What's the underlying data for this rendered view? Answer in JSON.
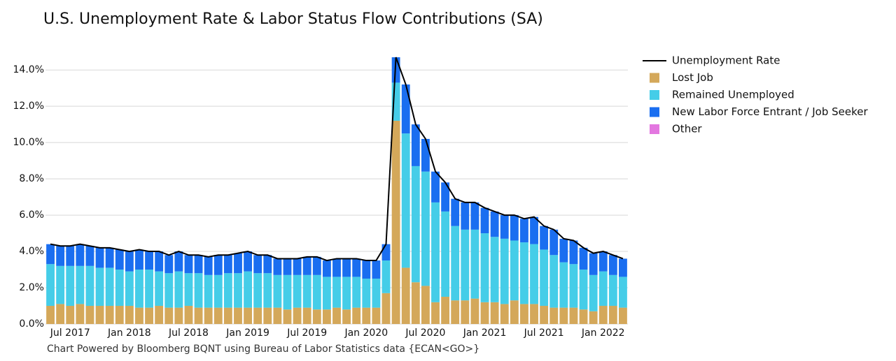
{
  "chart_data": {
    "type": "bar",
    "stacked": true,
    "title": "U.S. Unemployment Rate & Labor Status Flow Contributions (SA)",
    "note": "Chart Powered by Bloomberg BQNT using Bureau of Labor Statistics data    {ECAN<GO>}",
    "categories": [
      null,
      null,
      "Jul 2017",
      null,
      null,
      null,
      null,
      null,
      "Jan 2018",
      null,
      null,
      null,
      null,
      null,
      "Jul 2018",
      null,
      null,
      null,
      null,
      null,
      "Jan 2019",
      null,
      null,
      null,
      null,
      null,
      "Jul 2019",
      null,
      null,
      null,
      null,
      null,
      "Jan 2020",
      null,
      null,
      null,
      null,
      null,
      "Jul 2020",
      null,
      null,
      null,
      null,
      null,
      "Jan 2021",
      null,
      null,
      null,
      null,
      null,
      "Jul 2021",
      null,
      null,
      null,
      null,
      null,
      "Jan 2022",
      null,
      null
    ],
    "series": [
      {
        "name": "Unemployment Rate",
        "type": "line",
        "color": "#000000",
        "values": [
          4.4,
          4.3,
          4.3,
          4.4,
          4.3,
          4.2,
          4.2,
          4.1,
          4.0,
          4.1,
          4.0,
          4.0,
          3.8,
          4.0,
          3.8,
          3.8,
          3.7,
          3.8,
          3.8,
          3.9,
          4.0,
          3.8,
          3.8,
          3.6,
          3.6,
          3.6,
          3.7,
          3.7,
          3.5,
          3.6,
          3.6,
          3.6,
          3.5,
          3.5,
          4.4,
          14.7,
          13.2,
          11.0,
          10.2,
          8.4,
          7.8,
          6.9,
          6.7,
          6.7,
          6.4,
          6.2,
          6.0,
          6.0,
          5.8,
          5.9,
          5.4,
          5.2,
          4.7,
          4.6,
          4.2,
          3.9,
          4.0,
          3.8,
          3.6
        ]
      },
      {
        "name": "Lost Job",
        "type": "bar",
        "color": "#d4a85a",
        "values": [
          1.0,
          1.1,
          1.0,
          1.1,
          1.0,
          1.0,
          1.0,
          1.0,
          1.0,
          0.9,
          0.9,
          1.0,
          0.9,
          0.9,
          1.0,
          0.9,
          0.9,
          0.9,
          0.9,
          0.9,
          0.9,
          0.9,
          0.9,
          0.9,
          0.8,
          0.9,
          0.9,
          0.8,
          0.8,
          0.9,
          0.8,
          0.9,
          0.9,
          0.9,
          1.7,
          11.2,
          3.1,
          2.3,
          2.1,
          1.2,
          1.5,
          1.3,
          1.3,
          1.4,
          1.2,
          1.2,
          1.1,
          1.3,
          1.1,
          1.1,
          1.0,
          0.9,
          0.9,
          0.9,
          0.8,
          0.7,
          1.0,
          1.0,
          0.9
        ]
      },
      {
        "name": "Remained Unemployed",
        "type": "bar",
        "color": "#45cde8",
        "values": [
          2.3,
          2.1,
          2.2,
          2.1,
          2.2,
          2.1,
          2.1,
          2.0,
          1.9,
          2.1,
          2.1,
          1.9,
          1.9,
          2.0,
          1.8,
          1.9,
          1.8,
          1.8,
          1.9,
          1.9,
          2.0,
          1.9,
          1.9,
          1.8,
          1.9,
          1.8,
          1.8,
          1.9,
          1.8,
          1.7,
          1.8,
          1.7,
          1.6,
          1.6,
          1.8,
          2.1,
          7.4,
          6.4,
          6.3,
          5.5,
          4.7,
          4.1,
          3.9,
          3.8,
          3.8,
          3.6,
          3.6,
          3.3,
          3.4,
          3.3,
          3.1,
          2.9,
          2.5,
          2.4,
          2.2,
          2.0,
          1.9,
          1.7,
          1.7
        ]
      },
      {
        "name": "New Labor Force Entrant / Job Seeker",
        "type": "bar",
        "color": "#1a6ef0",
        "values": [
          1.1,
          1.1,
          1.1,
          1.2,
          1.1,
          1.1,
          1.1,
          1.1,
          1.1,
          1.1,
          1.0,
          1.1,
          1.0,
          1.1,
          1.0,
          1.0,
          1.0,
          1.1,
          1.0,
          1.1,
          1.1,
          1.0,
          1.0,
          0.9,
          0.9,
          0.9,
          1.0,
          1.0,
          0.9,
          1.0,
          1.0,
          1.0,
          1.0,
          1.0,
          0.9,
          1.4,
          2.7,
          2.3,
          1.8,
          1.7,
          1.6,
          1.5,
          1.5,
          1.5,
          1.4,
          1.4,
          1.3,
          1.4,
          1.3,
          1.5,
          1.3,
          1.4,
          1.3,
          1.3,
          1.2,
          1.2,
          1.1,
          1.1,
          1.0
        ]
      },
      {
        "name": "Other",
        "type": "bar",
        "color": "#e377e0",
        "values": [
          0,
          0,
          0,
          0,
          0,
          0,
          0,
          0,
          0,
          0,
          0,
          0,
          0,
          0,
          0,
          0,
          0,
          0,
          0,
          0,
          0,
          0,
          0,
          0,
          0,
          0,
          0,
          0,
          0,
          0,
          0,
          0,
          0,
          0,
          0,
          0,
          0,
          0,
          0,
          0,
          0,
          0,
          0,
          0,
          0,
          0,
          0,
          0,
          0,
          0,
          0,
          0,
          0,
          0,
          0,
          0,
          0,
          0,
          0
        ]
      }
    ],
    "ylim": [
      0,
      14.7
    ],
    "yticks": [
      {
        "value": 0,
        "label": "0.0%"
      },
      {
        "value": 2,
        "label": "2.0%"
      },
      {
        "value": 4,
        "label": "4.0%"
      },
      {
        "value": 6,
        "label": "6.0%"
      },
      {
        "value": 8,
        "label": "8.0%"
      },
      {
        "value": 10,
        "label": "10.0%"
      },
      {
        "value": 12,
        "label": "12.0%"
      },
      {
        "value": 14,
        "label": "14.0%"
      }
    ],
    "grid": true,
    "legend": "right"
  }
}
